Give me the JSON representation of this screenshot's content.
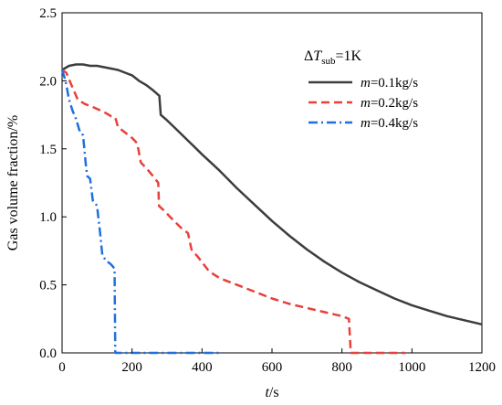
{
  "chart_data": {
    "type": "line",
    "xlabel_italic": "t",
    "xlabel_unit": "/s",
    "ylabel": "Gas volume fraction/%",
    "xlim": [
      0,
      1200
    ],
    "ylim": [
      0,
      2.5
    ],
    "xticks": [
      0,
      200,
      400,
      600,
      800,
      1000,
      1200
    ],
    "yticks": [
      0.0,
      0.5,
      1.0,
      1.5,
      2.0,
      2.5
    ],
    "ytick_labels": [
      "0.0",
      "0.5",
      "1.0",
      "1.5",
      "2.0",
      "2.5"
    ],
    "grid": false,
    "legend_position": "top-right",
    "annotation": {
      "delta": "Δ",
      "T": "T",
      "sub": "sub",
      "rest": "=1K"
    },
    "series": [
      {
        "name_italic": "m",
        "name_rest": "=0.1kg/s",
        "color": "#3d3d3d",
        "dash": "solid",
        "x": [
          0,
          20,
          40,
          60,
          80,
          100,
          120,
          140,
          160,
          180,
          200,
          220,
          240,
          260,
          278,
          282,
          300,
          320,
          340,
          360,
          380,
          400,
          450,
          500,
          550,
          600,
          650,
          700,
          750,
          800,
          850,
          900,
          950,
          1000,
          1050,
          1100,
          1150,
          1200
        ],
        "y": [
          2.08,
          2.11,
          2.12,
          2.12,
          2.11,
          2.11,
          2.1,
          2.09,
          2.08,
          2.06,
          2.04,
          2.0,
          1.97,
          1.93,
          1.89,
          1.75,
          1.71,
          1.66,
          1.61,
          1.56,
          1.51,
          1.46,
          1.34,
          1.21,
          1.09,
          0.97,
          0.86,
          0.76,
          0.67,
          0.59,
          0.52,
          0.46,
          0.4,
          0.35,
          0.31,
          0.27,
          0.24,
          0.21
        ]
      },
      {
        "name_italic": "m",
        "name_rest": "=0.2kg/s",
        "color": "#e8403a",
        "dash": "dashed",
        "x": [
          0,
          12,
          25,
          45,
          65,
          95,
          120,
          140,
          152,
          160,
          180,
          200,
          215,
          225,
          240,
          260,
          275,
          277,
          290,
          305,
          320,
          340,
          360,
          370,
          390,
          420,
          450,
          500,
          550,
          600,
          650,
          700,
          750,
          800,
          820,
          825,
          840,
          880,
          920,
          980
        ],
        "y": [
          2.08,
          2.06,
          1.98,
          1.86,
          1.83,
          1.8,
          1.77,
          1.74,
          1.73,
          1.66,
          1.62,
          1.58,
          1.54,
          1.4,
          1.36,
          1.3,
          1.25,
          1.08,
          1.05,
          1.01,
          0.97,
          0.92,
          0.88,
          0.76,
          0.7,
          0.6,
          0.55,
          0.5,
          0.45,
          0.4,
          0.36,
          0.33,
          0.3,
          0.27,
          0.25,
          0.0,
          0.0,
          0.0,
          0.0,
          0.0
        ]
      },
      {
        "name_italic": "m",
        "name_rest": "=0.4kg/s",
        "color": "#1f6fe0",
        "dash": "dashdot",
        "x": [
          0,
          10,
          20,
          30,
          40,
          48,
          52,
          60,
          68,
          72,
          80,
          88,
          95,
          100,
          108,
          115,
          125,
          140,
          150,
          152,
          170,
          200,
          250,
          300,
          350,
          400,
          450
        ],
        "y": [
          2.08,
          2.0,
          1.86,
          1.78,
          1.72,
          1.65,
          1.62,
          1.6,
          1.38,
          1.3,
          1.28,
          1.12,
          1.1,
          1.08,
          0.9,
          0.72,
          0.68,
          0.65,
          0.62,
          0.0,
          0.0,
          0.0,
          0.0,
          0.0,
          0.0,
          0.0,
          0.0
        ]
      }
    ]
  }
}
